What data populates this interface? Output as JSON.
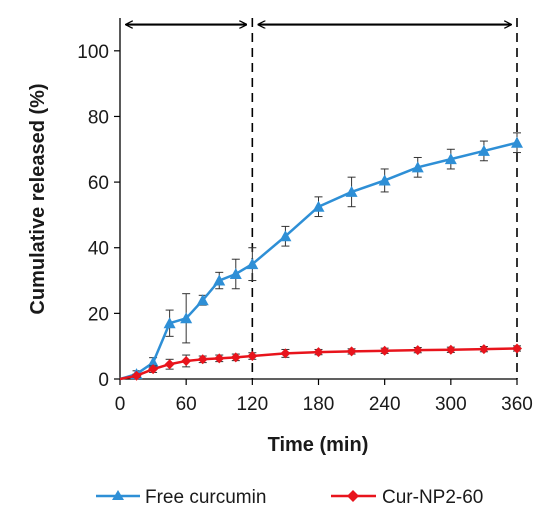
{
  "chart_data": {
    "type": "line",
    "xlabel": "Time (min)",
    "ylabel": "Cumulative released (%)",
    "xlim": [
      0,
      360
    ],
    "ylim": [
      0,
      110
    ],
    "x_ticks": [
      0,
      60,
      120,
      180,
      240,
      300,
      360
    ],
    "y_ticks": [
      0,
      20,
      40,
      60,
      80,
      100
    ],
    "grid": false,
    "legend_position": "bottom",
    "series": [
      {
        "name": "Free curcumin",
        "color": "#2e8fd6",
        "marker": "triangle",
        "x": [
          0,
          15,
          30,
          45,
          60,
          75,
          90,
          105,
          120,
          150,
          180,
          210,
          240,
          270,
          300,
          330,
          360
        ],
        "y": [
          0,
          1.5,
          5,
          17,
          18.5,
          24,
          30,
          32,
          35,
          43.5,
          52.5,
          57,
          60.5,
          64.5,
          67,
          69.5,
          72
        ],
        "error": [
          0,
          1.0,
          1.5,
          4.0,
          7.5,
          1.5,
          2.5,
          4.5,
          5.0,
          3.0,
          3.0,
          4.5,
          3.5,
          3.0,
          3.0,
          3.0,
          3.0
        ]
      },
      {
        "name": "Cur-NP2-60",
        "color": "#e8141c",
        "marker": "diamond",
        "x": [
          0,
          15,
          30,
          45,
          60,
          75,
          90,
          105,
          120,
          150,
          180,
          210,
          240,
          270,
          300,
          330,
          360
        ],
        "y": [
          0,
          1,
          3,
          4.5,
          5.5,
          6,
          6.3,
          6.6,
          7,
          7.8,
          8.2,
          8.4,
          8.6,
          8.8,
          8.9,
          9.1,
          9.3
        ],
        "error": [
          0,
          0.5,
          1.0,
          1.5,
          1.8,
          1.0,
          1.0,
          1.0,
          1.0,
          1.2,
          0.8,
          0.8,
          0.8,
          0.8,
          0.8,
          0.8,
          0.8
        ]
      }
    ],
    "annotations": {
      "dashed_vertical_lines_at_x": [
        120,
        360
      ],
      "double_arrows": [
        [
          0,
          120
        ],
        [
          120,
          360
        ]
      ],
      "arrow_y": 108
    }
  }
}
